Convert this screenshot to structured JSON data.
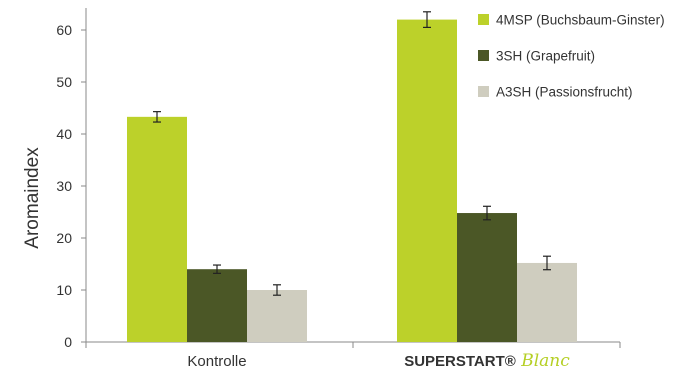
{
  "chart_data": {
    "type": "bar",
    "title": "",
    "xlabel": "",
    "ylabel": "Aromaindex",
    "ylim": [
      0,
      64
    ],
    "yticks": [
      0,
      10,
      20,
      30,
      40,
      50,
      60
    ],
    "grid": false,
    "legend_position": "top-right",
    "categories": [
      {
        "parts": [
          "Kontrolle"
        ]
      },
      {
        "parts": [
          "SUPERSTART®",
          "Blanc"
        ]
      }
    ],
    "series": [
      {
        "name": "4MSP (Buchsbaum-Ginster)",
        "color": "#bcd12a",
        "values": [
          43.3,
          62.0
        ],
        "errors": [
          1.0,
          1.5
        ]
      },
      {
        "name": "3SH (Grapefruit)",
        "color": "#4b5726",
        "values": [
          14.0,
          24.8
        ],
        "errors": [
          0.8,
          1.3
        ]
      },
      {
        "name": "A3SH (Passionsfrucht)",
        "color": "#cfcdbf",
        "values": [
          10.0,
          15.2
        ],
        "errors": [
          1.0,
          1.3
        ]
      }
    ]
  }
}
